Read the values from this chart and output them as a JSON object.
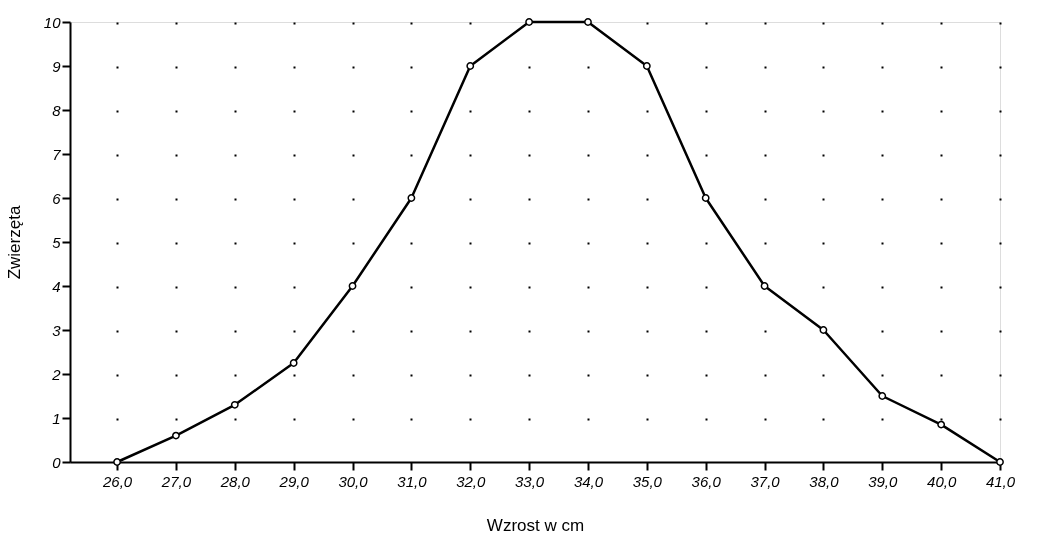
{
  "chart_data": {
    "type": "line",
    "xlabel": "Wzrost w cm",
    "ylabel": "Zwierzęta",
    "x": [
      26,
      27,
      28,
      29,
      30,
      31,
      32,
      33,
      34,
      35,
      36,
      37,
      38,
      39,
      40,
      41
    ],
    "series": [
      {
        "color": "#000000",
        "values": [
          0,
          0.6,
          1.3,
          2.25,
          4,
          6,
          9,
          10,
          10,
          9,
          6,
          4,
          3,
          1.5,
          0.85,
          0
        ]
      }
    ],
    "xlim": [
      25.2,
      41
    ],
    "xticks": [
      {
        "value": 26,
        "label": "26,0"
      },
      {
        "value": 27,
        "label": "27,0"
      },
      {
        "value": 28,
        "label": "28,0"
      },
      {
        "value": 29,
        "label": "29,0"
      },
      {
        "value": 30,
        "label": "30,0"
      },
      {
        "value": 31,
        "label": "31,0"
      },
      {
        "value": 32,
        "label": "32,0"
      },
      {
        "value": 33,
        "label": "33,0"
      },
      {
        "value": 34,
        "label": "34,0"
      },
      {
        "value": 35,
        "label": "35,0"
      },
      {
        "value": 36,
        "label": "36,0"
      },
      {
        "value": 37,
        "label": "37,0"
      },
      {
        "value": 38,
        "label": "38,0"
      },
      {
        "value": 39,
        "label": "39,0"
      },
      {
        "value": 40,
        "label": "40,0"
      },
      {
        "value": 41,
        "label": "41,0"
      }
    ],
    "ylim": [
      0,
      10
    ],
    "yticks": [
      0,
      1,
      2,
      3,
      4,
      5,
      6,
      7,
      8,
      9,
      10
    ],
    "grid": true,
    "marker": "circle",
    "line_style": "solid",
    "legend": false
  }
}
